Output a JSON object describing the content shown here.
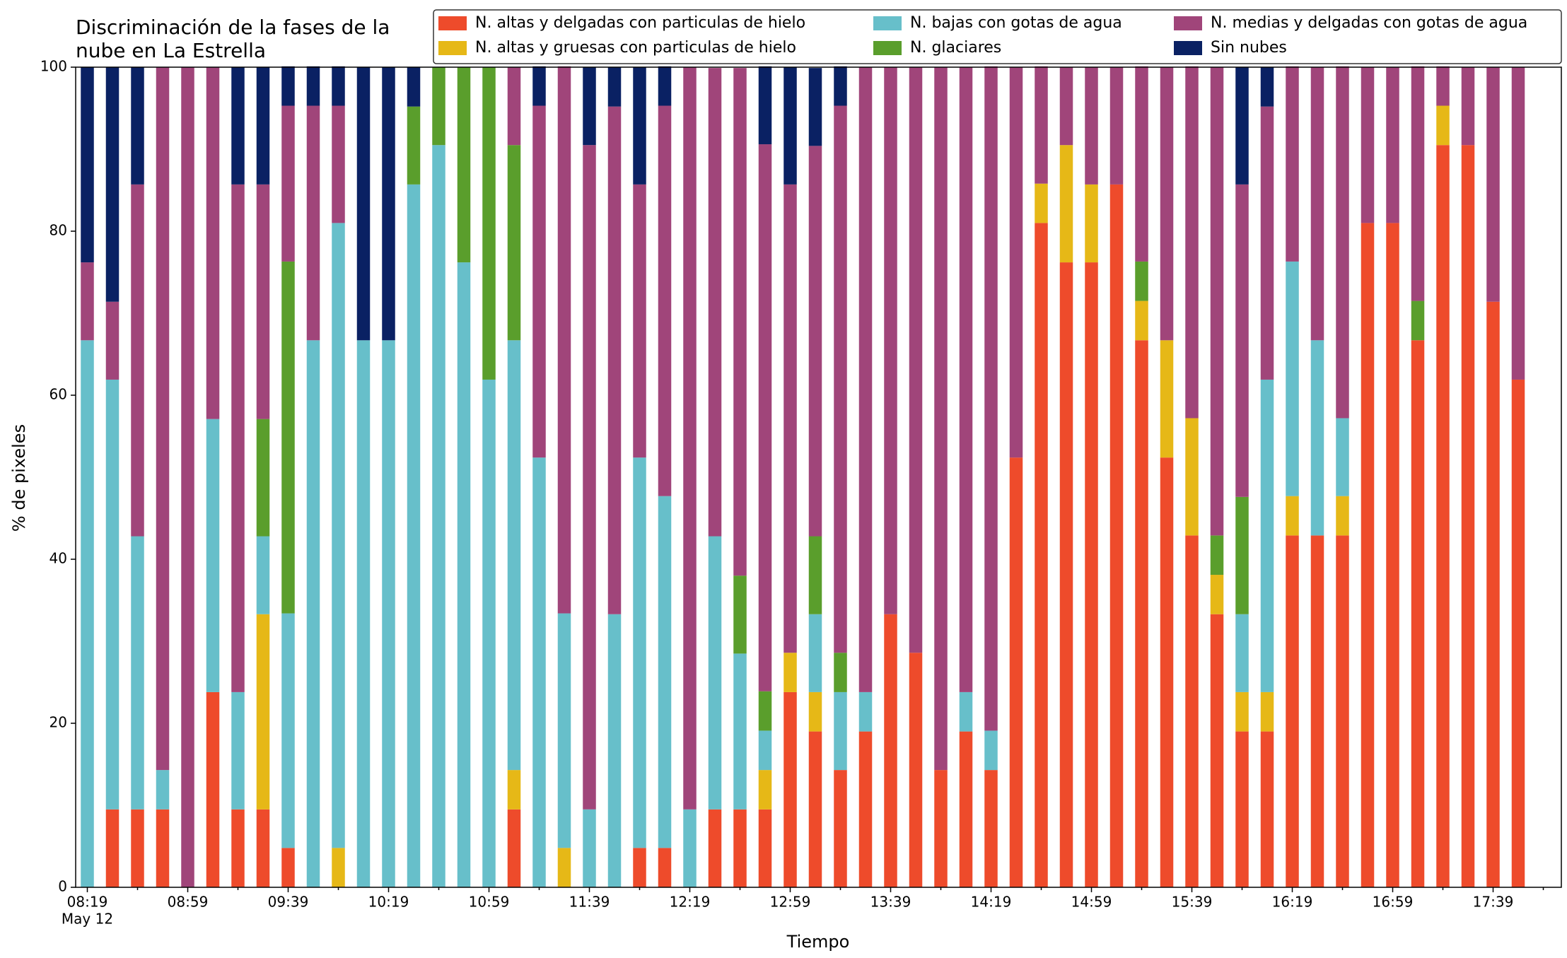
{
  "chart_data": {
    "type": "stacked_bar",
    "title": [
      "Discriminación de la fases de la",
      "nube en La Estrella"
    ],
    "xlabel": "Tiempo",
    "ylabel": "% de pixeles",
    "x_date": "May 12",
    "categories": [
      "08:19",
      null,
      null,
      null,
      "08:59",
      null,
      null,
      null,
      "09:39",
      null,
      null,
      null,
      "10:19",
      null,
      null,
      null,
      "10:59",
      null,
      null,
      null,
      "11:39",
      null,
      null,
      null,
      "12:19",
      null,
      null,
      null,
      "12:59",
      null,
      null,
      null,
      "13:39",
      null,
      null,
      null,
      "14:19",
      null,
      null,
      null,
      "14:59",
      null,
      null,
      null,
      "15:39",
      null,
      null,
      null,
      "16:19",
      null,
      null,
      null,
      "16:59",
      null,
      null,
      null,
      "17:39",
      null
    ],
    "ylim": [
      0,
      100
    ],
    "yticks": [
      0,
      20,
      40,
      60,
      80,
      100
    ],
    "grid": false,
    "legend": "top",
    "series": [
      {
        "name": "N. altas y delgadas con particulas de hielo",
        "color": "#ee4b2b",
        "values": [
          0,
          9.5,
          9.5,
          9.5,
          0,
          23.8,
          9.5,
          9.5,
          4.8,
          0,
          0,
          0,
          0,
          0,
          0,
          0,
          0,
          9.5,
          0,
          0,
          0,
          0,
          4.8,
          4.8,
          0,
          9.5,
          9.5,
          9.5,
          23.8,
          19,
          14.3,
          19,
          33.3,
          28.6,
          14.3,
          19,
          14.3,
          52.4,
          81,
          76.2,
          76.2,
          85.7,
          66.7,
          52.4,
          42.9,
          33.3,
          19,
          19,
          42.9,
          42.9,
          42.9,
          81,
          81,
          66.7,
          90.5,
          90.5,
          71.4,
          61.9
        ]
      },
      {
        "name": "N. altas y gruesas con particulas de hielo",
        "color": "#e6b817",
        "values": [
          0,
          0,
          0,
          0,
          0,
          0,
          0,
          23.8,
          0,
          0,
          4.8,
          0,
          0,
          0,
          0,
          0,
          0,
          4.8,
          0,
          4.8,
          0,
          0,
          0,
          0,
          0,
          0,
          0,
          4.8,
          4.8,
          4.8,
          0,
          0,
          0,
          0,
          0,
          0,
          0,
          0,
          4.8,
          14.3,
          9.5,
          0,
          4.8,
          14.3,
          14.3,
          4.8,
          4.8,
          4.8,
          4.8,
          0,
          4.8,
          0,
          0,
          0,
          4.8,
          0,
          0,
          0
        ]
      },
      {
        "name": "N. bajas con gotas de agua",
        "color": "#67bfca",
        "values": [
          66.7,
          52.4,
          33.3,
          4.8,
          0,
          33.3,
          14.3,
          9.5,
          28.6,
          66.7,
          76.2,
          66.7,
          66.7,
          85.7,
          90.5,
          76.2,
          61.9,
          52.4,
          52.4,
          28.6,
          9.5,
          33.3,
          47.6,
          42.9,
          9.5,
          33.3,
          19,
          4.8,
          0,
          9.5,
          9.5,
          4.8,
          0,
          0,
          0,
          4.8,
          4.8,
          0,
          0,
          0,
          0,
          0,
          0,
          0,
          0,
          0,
          9.5,
          38.1,
          28.6,
          23.8,
          9.5,
          0,
          0,
          0,
          0,
          0,
          0,
          0
        ]
      },
      {
        "name": "N. glaciares",
        "color": "#5a9e2c",
        "values": [
          0,
          0,
          0,
          0,
          0,
          0,
          0,
          14.3,
          42.9,
          0,
          0,
          0,
          0,
          9.5,
          9.5,
          23.8,
          38.1,
          23.8,
          0,
          0,
          0,
          0,
          0,
          0,
          0,
          0,
          9.5,
          4.8,
          0,
          9.5,
          4.8,
          0,
          0,
          0,
          0,
          0,
          0,
          0,
          0,
          0,
          0,
          0,
          4.8,
          0,
          0,
          4.8,
          14.3,
          0,
          0,
          0,
          0,
          0,
          0,
          4.8,
          0,
          0,
          0,
          0
        ]
      },
      {
        "name": "N. medias y delgadas con gotas de agua",
        "color": "#a0457a",
        "values": [
          9.5,
          9.5,
          42.9,
          85.7,
          100,
          42.9,
          61.9,
          28.6,
          19,
          28.6,
          14.3,
          0,
          0,
          0,
          0,
          0,
          0,
          9.5,
          42.9,
          66.7,
          81,
          61.9,
          33.3,
          47.6,
          90.5,
          57.1,
          61.9,
          66.7,
          57.1,
          47.6,
          66.7,
          76.2,
          66.7,
          71.4,
          85.7,
          76.2,
          81,
          47.6,
          14.3,
          9.5,
          14.3,
          14.3,
          23.8,
          33.3,
          42.9,
          57.1,
          38.1,
          33.3,
          23.8,
          33.3,
          42.9,
          19,
          19,
          28.6,
          4.8,
          9.5,
          28.6,
          38.1
        ]
      },
      {
        "name": "Sin nubes",
        "color": "#0a2163",
        "values": [
          23.8,
          28.6,
          14.3,
          0,
          0,
          0,
          14.3,
          14.3,
          4.8,
          4.8,
          4.8,
          33.3,
          33.3,
          4.8,
          0,
          0,
          0,
          0,
          4.8,
          0,
          9.5,
          4.8,
          14.3,
          4.8,
          0,
          0,
          0,
          9.5,
          14.3,
          9.5,
          4.8,
          0,
          0,
          0,
          0,
          0,
          0,
          0,
          0,
          0,
          0,
          0,
          0,
          0,
          0,
          0,
          14.3,
          4.8,
          0,
          0,
          0,
          0,
          0,
          0,
          0,
          0,
          0,
          0
        ]
      }
    ]
  }
}
